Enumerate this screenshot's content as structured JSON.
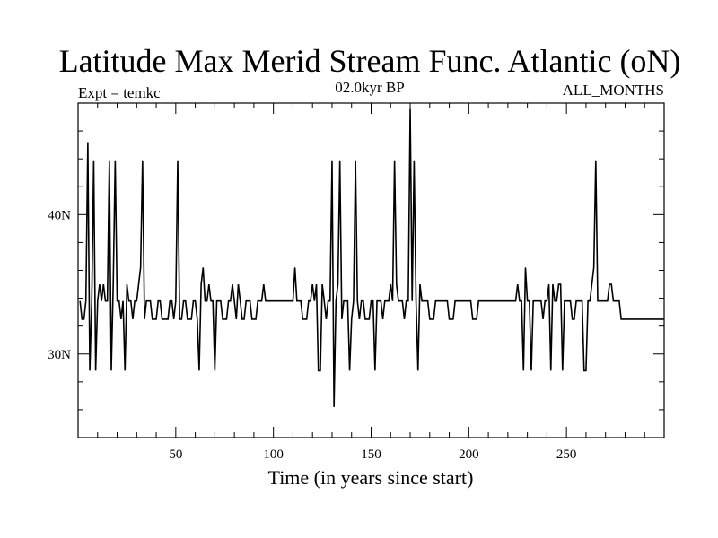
{
  "chart_data": {
    "type": "line",
    "title": "Latitude Max Merid Stream Func. Atlantic (oN)",
    "subtitle_left": "Expt = temkc",
    "subtitle_center": "02.0kyr BP",
    "subtitle_right": "ALL_MONTHS",
    "xlabel": "Time (in years since start)",
    "ylabel": "",
    "xlim": [
      0,
      300
    ],
    "ylim": [
      24,
      48
    ],
    "x_ticks": [
      50,
      100,
      150,
      200,
      250
    ],
    "x_tick_labels": [
      "50",
      "100",
      "150",
      "200",
      "250"
    ],
    "y_ticks": [
      30,
      40
    ],
    "y_tick_labels": [
      "30N",
      "40N"
    ],
    "grid": false,
    "legend": "none",
    "line_color": "#000000",
    "series": [
      {
        "values": [
          33.8,
          32.5,
          32.5,
          33.8,
          45.2,
          28.8,
          33.8,
          43.9,
          28.8,
          33.8,
          35.0,
          33.8,
          35.0,
          33.8,
          33.8,
          43.9,
          28.8,
          35.0,
          43.9,
          33.8,
          33.8,
          32.5,
          33.8,
          28.8,
          35.0,
          33.8,
          33.8,
          32.5,
          33.8,
          33.8,
          35.0,
          36.2,
          43.9,
          32.5,
          33.8,
          33.8,
          33.8,
          32.5,
          32.5,
          32.5,
          33.8,
          33.8,
          32.5,
          32.5,
          32.5,
          32.5,
          33.8,
          33.8,
          32.5,
          33.8,
          43.9,
          32.5,
          32.5,
          33.8,
          33.8,
          32.5,
          32.5,
          32.5,
          33.8,
          33.8,
          32.5,
          28.8,
          35.0,
          36.2,
          33.8,
          33.8,
          35.0,
          33.8,
          33.8,
          28.8,
          33.8,
          33.8,
          33.8,
          32.5,
          32.5,
          32.5,
          33.8,
          33.8,
          35.0,
          33.8,
          32.5,
          35.0,
          33.8,
          32.5,
          32.5,
          33.8,
          33.8,
          33.8,
          32.5,
          32.5,
          32.5,
          33.8,
          33.8,
          33.8,
          35.0,
          33.8,
          33.8,
          33.8,
          33.8,
          33.8,
          33.8,
          33.8,
          33.8,
          33.8,
          33.8,
          33.8,
          33.8,
          33.8,
          33.8,
          33.8,
          36.2,
          33.8,
          33.8,
          33.8,
          32.5,
          32.5,
          32.5,
          33.8,
          33.8,
          35.0,
          33.8,
          35.0,
          28.8,
          28.8,
          35.0,
          33.8,
          32.5,
          33.8,
          33.8,
          43.9,
          26.2,
          33.8,
          35.0,
          43.9,
          32.5,
          33.8,
          33.8,
          33.8,
          28.8,
          32.5,
          33.8,
          43.9,
          33.8,
          32.5,
          33.8,
          33.8,
          32.5,
          32.5,
          32.5,
          33.8,
          33.8,
          28.8,
          33.8,
          33.8,
          33.8,
          32.5,
          33.8,
          33.8,
          33.8,
          35.0,
          33.8,
          43.9,
          35.0,
          33.8,
          33.8,
          33.8,
          32.5,
          33.8,
          33.8,
          47.6,
          33.8,
          43.9,
          33.8,
          28.8,
          35.0,
          33.8,
          33.8,
          33.8,
          33.8,
          32.5,
          32.5,
          32.5,
          33.8,
          33.8,
          33.8,
          33.8,
          33.8,
          33.8,
          33.8,
          32.5,
          32.5,
          32.5,
          33.8,
          33.8,
          33.8,
          33.8,
          33.8,
          33.8,
          33.8,
          33.8,
          33.8,
          32.5,
          32.5,
          32.5,
          33.8,
          33.8,
          33.8,
          33.8,
          33.8,
          33.8,
          33.8,
          33.8,
          33.8,
          33.8,
          33.8,
          33.8,
          33.8,
          33.8,
          33.8,
          33.8,
          33.8,
          33.8,
          33.8,
          33.8,
          35.0,
          33.8,
          33.8,
          28.8,
          36.2,
          33.8,
          33.8,
          28.8,
          33.8,
          33.8,
          33.8,
          33.8,
          33.8,
          32.5,
          33.8,
          33.8,
          35.0,
          28.8,
          35.0,
          33.8,
          33.8,
          35.0,
          35.0,
          28.8,
          33.8,
          33.8,
          33.8,
          33.8,
          32.5,
          32.5,
          33.8,
          33.8,
          33.8,
          33.8,
          28.8,
          28.8,
          33.8,
          33.8,
          35.0,
          36.2,
          43.9,
          33.8,
          33.8,
          33.8,
          33.8,
          33.8,
          33.8,
          35.0,
          35.0,
          33.8,
          33.8,
          33.8,
          33.8,
          32.5,
          32.5,
          32.5,
          32.5,
          32.5,
          32.5,
          32.5,
          32.5,
          32.5,
          32.5,
          32.5,
          32.5,
          32.5,
          32.5,
          32.5,
          32.5,
          32.5,
          32.5,
          32.5,
          32.5,
          32.5,
          32.5,
          32.5
        ]
      }
    ]
  }
}
